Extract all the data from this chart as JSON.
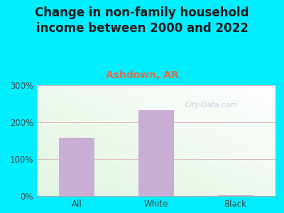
{
  "title": "Change in non-family household\nincome between 2000 and 2022",
  "subtitle": "Ashdown, AR",
  "categories": [
    "All",
    "White",
    "Black"
  ],
  "values": [
    158,
    232,
    2
  ],
  "bar_color": "#c9aed6",
  "bar_width": 0.45,
  "ylim": [
    0,
    300
  ],
  "yticks": [
    0,
    100,
    200,
    300
  ],
  "ytick_labels": [
    "0%",
    "100%",
    "200%",
    "300%"
  ],
  "title_fontsize": 12,
  "subtitle_fontsize": 10,
  "subtitle_color": "#d9704a",
  "title_color": "#1a1a1a",
  "bg_outer": "#00eeff",
  "grid_color": "#e0b8b8",
  "watermark": "City-Data.com",
  "tick_fontsize": 8.5
}
